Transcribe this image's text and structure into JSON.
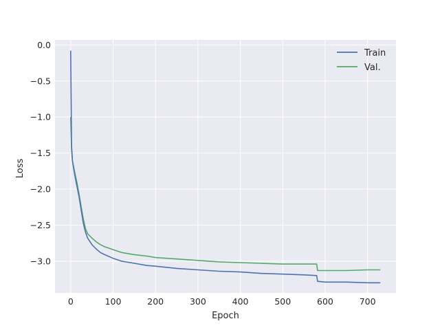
{
  "chart_data": {
    "type": "line",
    "title": "",
    "xlabel": "Epoch",
    "ylabel": "Loss",
    "xlim": [
      -37,
      767
    ],
    "ylim": [
      -3.44,
      0.07
    ],
    "xticks": [
      0,
      100,
      200,
      300,
      400,
      500,
      600,
      700
    ],
    "yticks": [
      0.0,
      -0.5,
      -1.0,
      -1.5,
      -2.0,
      -2.5,
      -3.0
    ],
    "ytick_labels": [
      "0.0",
      "−0.5",
      "−1.0",
      "−1.5",
      "−2.0",
      "−2.5",
      "−3.0"
    ],
    "grid": true,
    "style": "seaborn-darkgrid",
    "legend_position": "top-right",
    "series": [
      {
        "name": "Train",
        "color": "#4c72b0",
        "x": [
          0,
          2,
          4,
          6,
          10,
          15,
          20,
          25,
          30,
          35,
          40,
          50,
          60,
          70,
          80,
          100,
          120,
          150,
          180,
          200,
          250,
          300,
          350,
          400,
          450,
          500,
          550,
          580,
          582,
          600,
          650,
          700,
          730
        ],
        "y": [
          -0.08,
          -1.4,
          -1.6,
          -1.68,
          -1.82,
          -1.97,
          -2.12,
          -2.3,
          -2.48,
          -2.6,
          -2.68,
          -2.77,
          -2.83,
          -2.88,
          -2.91,
          -2.96,
          -3.0,
          -3.03,
          -3.06,
          -3.07,
          -3.1,
          -3.12,
          -3.14,
          -3.15,
          -3.17,
          -3.18,
          -3.19,
          -3.2,
          -3.28,
          -3.29,
          -3.29,
          -3.3,
          -3.3
        ]
      },
      {
        "name": "Val.",
        "color": "#55a868",
        "x": [
          0,
          2,
          4,
          6,
          10,
          15,
          20,
          25,
          30,
          35,
          40,
          50,
          60,
          70,
          80,
          100,
          120,
          150,
          180,
          200,
          250,
          300,
          350,
          400,
          450,
          500,
          550,
          580,
          582,
          600,
          650,
          700,
          730
        ],
        "y": [
          -1.0,
          -1.45,
          -1.6,
          -1.66,
          -1.78,
          -1.92,
          -2.08,
          -2.25,
          -2.42,
          -2.55,
          -2.62,
          -2.68,
          -2.73,
          -2.77,
          -2.8,
          -2.84,
          -2.88,
          -2.91,
          -2.93,
          -2.95,
          -2.97,
          -2.99,
          -3.01,
          -3.02,
          -3.03,
          -3.04,
          -3.04,
          -3.04,
          -3.13,
          -3.13,
          -3.13,
          -3.12,
          -3.12
        ]
      }
    ]
  }
}
